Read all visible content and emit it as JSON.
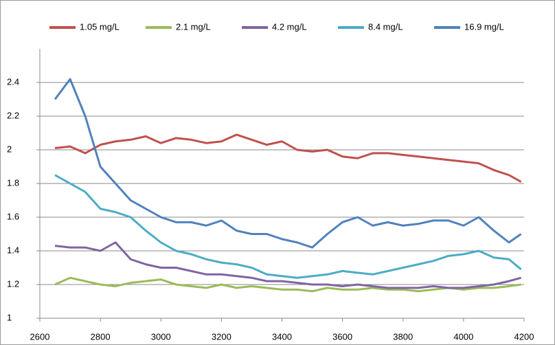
{
  "chart_data": {
    "type": "line",
    "x": [
      2650,
      2700,
      2750,
      2800,
      2850,
      2900,
      2950,
      3000,
      3050,
      3100,
      3150,
      3200,
      3250,
      3300,
      3350,
      3400,
      3450,
      3500,
      3550,
      3600,
      3650,
      3700,
      3750,
      3800,
      3850,
      3900,
      3950,
      4000,
      4050,
      4100,
      4150,
      4190
    ],
    "series": [
      {
        "name": "1.05 mg/L",
        "color": "#c0504d",
        "values": [
          2.01,
          2.02,
          1.98,
          2.03,
          2.05,
          2.06,
          2.08,
          2.04,
          2.07,
          2.06,
          2.04,
          2.05,
          2.09,
          2.06,
          2.03,
          2.05,
          2.0,
          1.99,
          2.0,
          1.96,
          1.95,
          1.98,
          1.98,
          1.97,
          1.96,
          1.95,
          1.94,
          1.93,
          1.92,
          1.88,
          1.85,
          1.81
        ]
      },
      {
        "name": "2.1 mg/L",
        "color": "#9bbb59",
        "values": [
          1.2,
          1.24,
          1.22,
          1.2,
          1.19,
          1.21,
          1.22,
          1.23,
          1.2,
          1.19,
          1.18,
          1.2,
          1.18,
          1.19,
          1.18,
          1.17,
          1.17,
          1.16,
          1.18,
          1.17,
          1.17,
          1.18,
          1.17,
          1.17,
          1.16,
          1.17,
          1.18,
          1.17,
          1.18,
          1.18,
          1.19,
          1.2
        ]
      },
      {
        "name": "4.2 mg/L",
        "color": "#8064a2",
        "values": [
          1.43,
          1.42,
          1.42,
          1.4,
          1.45,
          1.35,
          1.32,
          1.3,
          1.3,
          1.28,
          1.26,
          1.26,
          1.25,
          1.24,
          1.22,
          1.22,
          1.21,
          1.2,
          1.2,
          1.19,
          1.2,
          1.19,
          1.18,
          1.18,
          1.18,
          1.19,
          1.18,
          1.18,
          1.19,
          1.2,
          1.22,
          1.24
        ]
      },
      {
        "name": "8.4 mg/L",
        "color": "#4bacc6",
        "values": [
          1.85,
          1.8,
          1.75,
          1.65,
          1.63,
          1.6,
          1.52,
          1.45,
          1.4,
          1.38,
          1.35,
          1.33,
          1.32,
          1.3,
          1.26,
          1.25,
          1.24,
          1.25,
          1.26,
          1.28,
          1.27,
          1.26,
          1.28,
          1.3,
          1.32,
          1.34,
          1.37,
          1.38,
          1.4,
          1.36,
          1.35,
          1.29
        ]
      },
      {
        "name": "16.9 mg/L",
        "color": "#4f81bd",
        "values": [
          2.3,
          2.42,
          2.2,
          1.9,
          1.8,
          1.7,
          1.65,
          1.6,
          1.57,
          1.57,
          1.55,
          1.58,
          1.52,
          1.5,
          1.5,
          1.47,
          1.45,
          1.42,
          1.5,
          1.57,
          1.6,
          1.55,
          1.57,
          1.55,
          1.56,
          1.58,
          1.58,
          1.55,
          1.6,
          1.52,
          1.45,
          1.5
        ]
      }
    ],
    "xlim": [
      2600,
      4200
    ],
    "xticks": [
      2600,
      2800,
      3000,
      3200,
      3400,
      3600,
      3800,
      4000,
      4200
    ],
    "ylim": [
      1,
      2.6
    ],
    "yticks": [
      1,
      1.2,
      1.4,
      1.6,
      1.8,
      2,
      2.2,
      2.4
    ],
    "grid": true,
    "legend": "top"
  }
}
